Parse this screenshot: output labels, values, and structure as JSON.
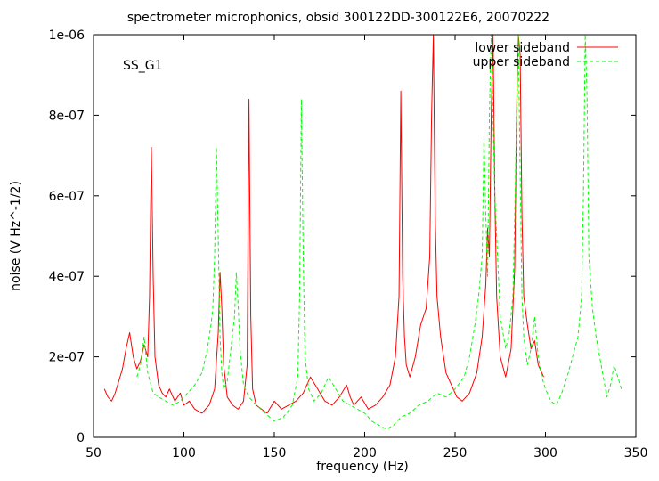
{
  "chart_data": {
    "type": "line",
    "title": "spectrometer microphonics, obsid 300122DD-300122E6, 20070222",
    "xlabel": "frequency (Hz)",
    "ylabel": "noise (V Hz^-1/2)",
    "annotation": "SS_G1",
    "xlim": [
      50,
      350
    ],
    "ylim": [
      0,
      1e-06
    ],
    "x_ticks": [
      50,
      100,
      150,
      200,
      250,
      300,
      350
    ],
    "x_tick_labels": [
      "50",
      "100",
      "150",
      "200",
      "250",
      "300",
      "350"
    ],
    "y_ticks": [
      0,
      2e-07,
      4e-07,
      6e-07,
      8e-07,
      1e-06
    ],
    "y_tick_labels": [
      "0",
      "2e-07",
      "4e-07",
      "6e-07",
      "8e-07",
      "1e-06"
    ],
    "grid": false,
    "legend_position": "top-right",
    "series": [
      {
        "name": "lower sideband",
        "color": "#ff0000",
        "dash": "solid",
        "x": [
          56,
          58,
          60,
          62,
          64,
          66,
          68,
          70,
          72,
          74,
          76,
          78,
          80,
          81,
          82,
          83,
          84,
          86,
          88,
          90,
          92,
          95,
          98,
          100,
          103,
          106,
          110,
          114,
          117,
          119,
          120,
          121,
          122,
          124,
          127,
          130,
          133,
          135,
          136,
          137,
          138,
          140,
          143,
          146,
          150,
          154,
          158,
          162,
          166,
          170,
          174,
          178,
          182,
          186,
          190,
          192,
          194,
          198,
          202,
          206,
          210,
          214,
          217,
          219,
          220,
          221,
          222,
          223,
          225,
          228,
          231,
          234,
          236,
          237,
          238,
          239,
          240,
          242,
          245,
          248,
          251,
          254,
          258,
          262,
          265,
          267,
          268,
          269,
          270,
          271,
          272,
          273,
          275,
          278,
          281,
          283,
          284,
          285,
          286,
          287,
          288,
          290,
          292,
          294,
          296,
          299
        ],
        "y": [
          1.2e-07,
          1e-07,
          9e-08,
          1.1e-07,
          1.4e-07,
          1.7e-07,
          2.2e-07,
          2.6e-07,
          2e-07,
          1.7e-07,
          1.9e-07,
          2.3e-07,
          2e-07,
          3.5e-07,
          7.2e-07,
          4e-07,
          2e-07,
          1.3e-07,
          1.1e-07,
          1e-07,
          1.2e-07,
          9e-08,
          1.1e-07,
          8e-08,
          9e-08,
          7e-08,
          6e-08,
          8e-08,
          1.2e-07,
          2.6e-07,
          4.1e-07,
          3.2e-07,
          1.8e-07,
          1e-07,
          8e-08,
          7e-08,
          9e-08,
          1.8e-07,
          8.4e-07,
          3e-07,
          1.2e-07,
          8e-08,
          7e-08,
          6e-08,
          9e-08,
          7e-08,
          8e-08,
          9e-08,
          1.1e-07,
          1.5e-07,
          1.2e-07,
          9e-08,
          8e-08,
          1e-07,
          1.3e-07,
          1e-07,
          8e-08,
          1e-07,
          7e-08,
          8e-08,
          1e-07,
          1.3e-07,
          2e-07,
          3.5e-07,
          8.6e-07,
          4e-07,
          2.5e-07,
          1.8e-07,
          1.5e-07,
          2e-07,
          2.8e-07,
          3.2e-07,
          4.5e-07,
          8e-07,
          1e-06,
          5.5e-07,
          3.5e-07,
          2.5e-07,
          1.6e-07,
          1.3e-07,
          1e-07,
          9e-08,
          1.1e-07,
          1.6e-07,
          2.5e-07,
          3.8e-07,
          5.2e-07,
          4.5e-07,
          8e-07,
          1e-06,
          6e-07,
          3.5e-07,
          2e-07,
          1.5e-07,
          2.2e-07,
          4.2e-07,
          8e-07,
          1e-06,
          9.5e-07,
          5.5e-07,
          3.5e-07,
          2.8e-07,
          2.2e-07,
          2.4e-07,
          1.8e-07,
          1.5e-07
        ]
      },
      {
        "name": "upper sideband",
        "color": "#00ff00",
        "dash": "dashed",
        "x": [
          74,
          76,
          78,
          80,
          83,
          86,
          90,
          94,
          98,
          102,
          106,
          110,
          113,
          115,
          116,
          117,
          118,
          119,
          120,
          121,
          122,
          124,
          126,
          128,
          129,
          130,
          131,
          133,
          136,
          140,
          145,
          150,
          155,
          160,
          163,
          164,
          165,
          166,
          167,
          169,
          172,
          176,
          180,
          184,
          188,
          192,
          196,
          200,
          204,
          208,
          212,
          216,
          220,
          225,
          230,
          235,
          240,
          245,
          250,
          255,
          258,
          261,
          263,
          265,
          266,
          267,
          268,
          269,
          270,
          272,
          275,
          278,
          280,
          282,
          283,
          284,
          285,
          286,
          287,
          288,
          290,
          292,
          294,
          296,
          298,
          300,
          303,
          306,
          309,
          312,
          315,
          318,
          320,
          321,
          322,
          323,
          324,
          326,
          328,
          330,
          332,
          334,
          336,
          338,
          340,
          342
        ],
        "y": [
          1.5e-07,
          1.8e-07,
          2.5e-07,
          1.6e-07,
          1.1e-07,
          1e-07,
          9e-08,
          8e-08,
          9e-08,
          1.1e-07,
          1.3e-07,
          1.6e-07,
          2.2e-07,
          2.8e-07,
          3.2e-07,
          4.5e-07,
          7.2e-07,
          5e-07,
          2.5e-07,
          1.6e-07,
          1.2e-07,
          1.4e-07,
          2.2e-07,
          3e-07,
          4.1e-07,
          3.3e-07,
          2.2e-07,
          1.3e-07,
          1e-07,
          8e-08,
          6e-08,
          4e-08,
          5e-08,
          8e-08,
          1.5e-07,
          3.5e-07,
          8.4e-07,
          4.5e-07,
          2e-07,
          1.2e-07,
          9e-08,
          1.1e-07,
          1.5e-07,
          1.2e-07,
          9e-08,
          8e-08,
          7e-08,
          6e-08,
          4e-08,
          3e-08,
          2e-08,
          3e-08,
          5e-08,
          6e-08,
          8e-08,
          9e-08,
          1.1e-07,
          1e-07,
          1.2e-07,
          1.5e-07,
          2e-07,
          2.8e-07,
          3.5e-07,
          4.5e-07,
          7.5e-07,
          5.5e-07,
          4e-07,
          8e-07,
          1e-06,
          6e-07,
          3e-07,
          2.2e-07,
          2.6e-07,
          3.5e-07,
          5.5e-07,
          8e-07,
          1e-06,
          6.5e-07,
          3.5e-07,
          2.5e-07,
          1.8e-07,
          2.2e-07,
          3e-07,
          2e-07,
          1.5e-07,
          1.2e-07,
          9e-08,
          8e-08,
          1.1e-07,
          1.5e-07,
          2e-07,
          2.5e-07,
          3.5e-07,
          6e-07,
          1e-06,
          8.5e-07,
          4.5e-07,
          3.2e-07,
          2.5e-07,
          2e-07,
          1.5e-07,
          1e-07,
          1.3e-07,
          1.8e-07,
          1.5e-07,
          1.2e-07
        ]
      }
    ]
  }
}
